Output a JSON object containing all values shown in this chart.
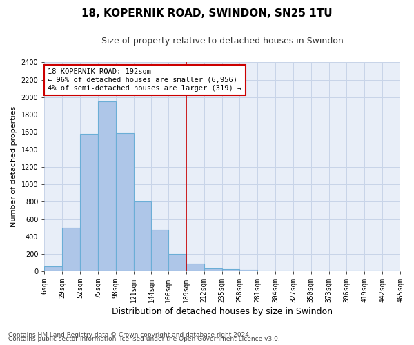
{
  "title1": "18, KOPERNIK ROAD, SWINDON, SN25 1TU",
  "title2": "Size of property relative to detached houses in Swindon",
  "xlabel": "Distribution of detached houses by size in Swindon",
  "ylabel": "Number of detached properties",
  "bin_edges": [
    6,
    29,
    52,
    75,
    98,
    121,
    144,
    166,
    189,
    212,
    235,
    258,
    281,
    304,
    327,
    350,
    373,
    396,
    419,
    442,
    465
  ],
  "bar_heights": [
    60,
    500,
    1580,
    1950,
    1590,
    800,
    480,
    200,
    90,
    35,
    25,
    20,
    0,
    0,
    0,
    0,
    0,
    0,
    0,
    0
  ],
  "bar_color": "#aec6e8",
  "bar_edge_color": "#6baed6",
  "bar_linewidth": 0.8,
  "vline_x": 189,
  "vline_color": "#cc0000",
  "vline_linewidth": 1.2,
  "annotation_text": "18 KOPERNIK ROAD: 192sqm\n← 96% of detached houses are smaller (6,956)\n4% of semi-detached houses are larger (319) →",
  "annotation_box_color": "#cc0000",
  "annotation_bg": "#ffffff",
  "ylim": [
    0,
    2400
  ],
  "yticks": [
    0,
    200,
    400,
    600,
    800,
    1000,
    1200,
    1400,
    1600,
    1800,
    2000,
    2200,
    2400
  ],
  "grid_color": "#c8d4e8",
  "bg_color": "#e8eef8",
  "footer1": "Contains HM Land Registry data © Crown copyright and database right 2024.",
  "footer2": "Contains public sector information licensed under the Open Government Licence v3.0.",
  "title1_fontsize": 11,
  "title2_fontsize": 9,
  "xlabel_fontsize": 9,
  "ylabel_fontsize": 8,
  "tick_fontsize": 7,
  "annotation_fontsize": 7.5,
  "footer_fontsize": 6.5
}
